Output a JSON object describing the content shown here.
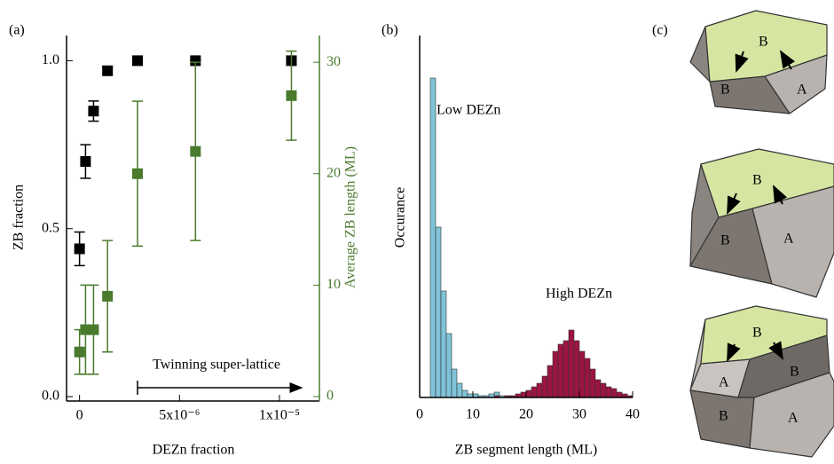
{
  "chart_data": [
    {
      "type": "scatter",
      "panel_label": "(a)",
      "x_label": "DEZn fraction",
      "y_label": "ZB fraction",
      "y2_label": "Average ZB length (ML)",
      "annotation": "Twinning super-lattice",
      "xlim": [
        -6.5e-07,
        1.2e-05
      ],
      "xticks": [
        0,
        {
          "value": 5e-06,
          "label": "5x10⁻⁶"
        },
        {
          "value": 1e-05,
          "label": "1x10⁻⁵"
        }
      ],
      "ylim": [
        -0.013,
        1.075
      ],
      "yticks": [
        {
          "value": 0,
          "label": "0.0"
        },
        0.5,
        {
          "value": 1,
          "label": "1.0"
        }
      ],
      "y2lim": [
        -0.4,
        32.4
      ],
      "y2ticks": [
        0,
        10,
        20,
        30
      ],
      "series": [
        {
          "color": "#000000",
          "x": [
            0,
            3e-07,
            7e-07,
            1.4e-06,
            2.9e-06,
            5.8e-06,
            1.06e-05
          ],
          "values": [
            0.44,
            0.7,
            0.85,
            0.97,
            1,
            1,
            1
          ],
          "errors": [
            0.05,
            0.05,
            0.03,
            0.01,
            0,
            0,
            0
          ]
        },
        {
          "color": "#4a7a2e",
          "axis": "y2",
          "x": [
            0,
            3e-07,
            7e-07,
            1.4e-06,
            2.9e-06,
            5.8e-06,
            1.06e-05
          ],
          "values": [
            4,
            6,
            6,
            9,
            20,
            22,
            27
          ],
          "errors": [
            2,
            4,
            4,
            5,
            6.5,
            8,
            4
          ]
        }
      ]
    },
    {
      "type": "histogram",
      "panel_label": "(b)",
      "x_label": "ZB segment length (ML)",
      "y_label": "Occurance",
      "xlim": [
        0,
        40
      ],
      "xticks": [
        0,
        10,
        20,
        30,
        40
      ],
      "ylim": [
        0,
        102
      ],
      "bins": [
        0,
        1,
        2,
        3,
        4,
        5,
        6,
        7,
        8,
        9,
        10,
        11,
        12,
        13,
        14,
        15,
        16,
        17,
        18,
        19,
        20,
        21,
        22,
        23,
        24,
        25,
        26,
        27,
        28,
        29,
        30,
        31,
        32,
        33,
        34,
        35,
        36,
        37,
        38,
        39,
        40
      ],
      "series": [
        {
          "name": "Low DEZn",
          "color": "#7fc3d9",
          "values": [
            0,
            0,
            90,
            48,
            30,
            18,
            8,
            4,
            2,
            1,
            1,
            0.5,
            0.5,
            1,
            1.5,
            0.5,
            0,
            0,
            0,
            0,
            0,
            0,
            0,
            0,
            0,
            0,
            0,
            0,
            0,
            0,
            0,
            0,
            0,
            0,
            0,
            0,
            0,
            0,
            0,
            0
          ]
        },
        {
          "name": "High DEZn",
          "color": "#9b1444",
          "values": [
            0,
            0,
            0,
            0,
            0,
            0,
            0,
            0,
            0,
            0,
            0,
            0,
            0,
            0,
            0.5,
            0,
            0.5,
            0.5,
            1,
            1.5,
            2,
            3,
            4,
            6,
            9,
            13,
            15,
            16,
            19,
            16,
            13,
            11,
            8,
            5,
            4,
            3,
            2.5,
            1.5,
            1,
            0.5
          ]
        }
      ]
    }
  ],
  "panel_c": {
    "label": "(c)",
    "diagrams": [
      {
        "labels": [
          "B",
          "B",
          "A"
        ]
      },
      {
        "labels": [
          "B",
          "B",
          "A"
        ]
      },
      {
        "labels": [
          "B",
          "A",
          "B",
          "B",
          "A"
        ]
      }
    ]
  }
}
